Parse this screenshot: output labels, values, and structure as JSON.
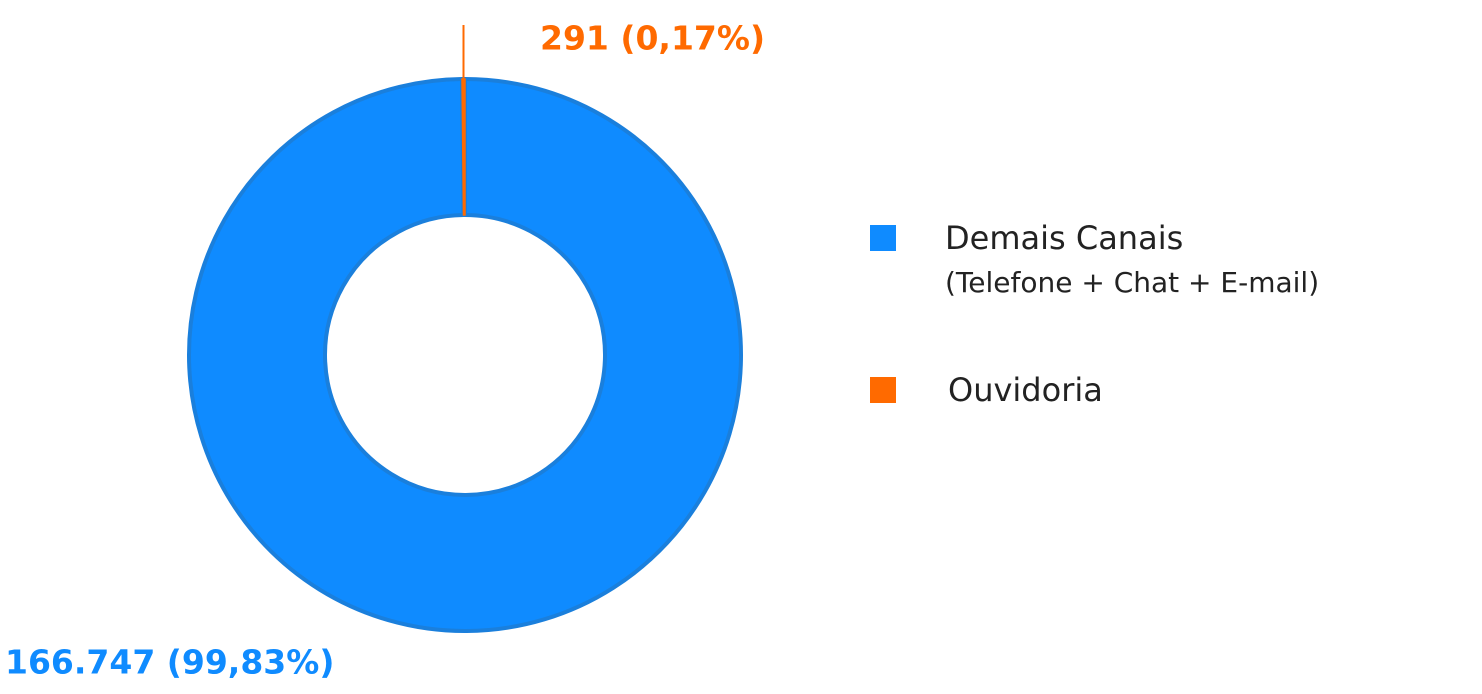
{
  "chart_data": {
    "type": "donut",
    "categories": [
      "Demais Canais",
      "Ouvidoria"
    ],
    "legend_subtitles": [
      "(Telefone + Chat + E-mail)",
      null
    ],
    "values": [
      166747,
      291
    ],
    "value_labels": [
      "166.747 (99,83%)",
      "291 (0,17%)"
    ],
    "colors": [
      "#0f8bff",
      "#ff6a00"
    ]
  }
}
